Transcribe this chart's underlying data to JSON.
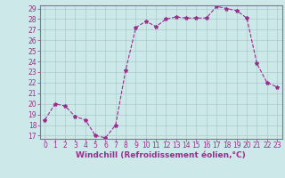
{
  "hours": [
    0,
    1,
    2,
    3,
    4,
    5,
    6,
    7,
    8,
    9,
    10,
    11,
    12,
    13,
    14,
    15,
    16,
    17,
    18,
    19,
    20,
    21,
    22,
    23
  ],
  "values": [
    18.5,
    20.0,
    19.8,
    18.8,
    18.5,
    17.0,
    16.8,
    18.0,
    23.2,
    27.2,
    27.8,
    27.3,
    28.0,
    28.2,
    28.1,
    28.1,
    28.1,
    29.2,
    29.0,
    28.8,
    28.1,
    23.8,
    22.0,
    21.6
  ],
  "line_color": "#9b2d8e",
  "marker": "*",
  "marker_size": 3,
  "background_color": "#cce8e8",
  "grid_color": "#aacccc",
  "xlabel": "Windchill (Refroidissement éolien,°C)",
  "ylim_min": 17,
  "ylim_max": 29,
  "xlim_min": -0.5,
  "xlim_max": 23.5,
  "yticks": [
    17,
    18,
    19,
    20,
    21,
    22,
    23,
    24,
    25,
    26,
    27,
    28,
    29
  ],
  "xticks": [
    0,
    1,
    2,
    3,
    4,
    5,
    6,
    7,
    8,
    9,
    10,
    11,
    12,
    13,
    14,
    15,
    16,
    17,
    18,
    19,
    20,
    21,
    22,
    23
  ],
  "tick_fontsize": 5.5,
  "xlabel_fontsize": 6.5,
  "spine_color": "#7777aa"
}
